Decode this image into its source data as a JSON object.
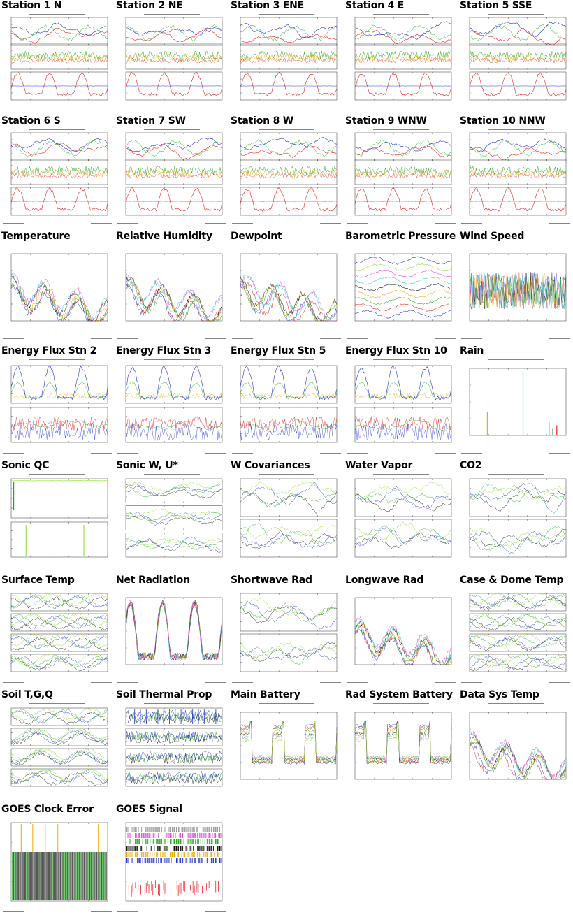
{
  "page": {
    "background": "#ffffff"
  },
  "colors": {
    "blue": "#2233dd",
    "red": "#ee2222",
    "green": "#22aa22",
    "orange": "#eeaa00",
    "black": "#111111",
    "cyan": "#33cccc",
    "magenta": "#dd44dd",
    "lime": "#88dd22",
    "gray": "#999999"
  },
  "tiles": [
    {
      "title": "Station 1 N",
      "kind": "station"
    },
    {
      "title": "Station 2 NE",
      "kind": "station"
    },
    {
      "title": "Station 3 ENE",
      "kind": "station"
    },
    {
      "title": "Station 4 E",
      "kind": "station"
    },
    {
      "title": "Station 5 SSE",
      "kind": "station"
    },
    {
      "title": "Station 6 S",
      "kind": "station"
    },
    {
      "title": "Station 7 SW",
      "kind": "station"
    },
    {
      "title": "Station 8 W",
      "kind": "station"
    },
    {
      "title": "Station 9 WNW",
      "kind": "station"
    },
    {
      "title": "Station 10 NNW",
      "kind": "station"
    },
    {
      "title": "Temperature",
      "kind": "multi"
    },
    {
      "title": "Relative Humidity",
      "kind": "multi"
    },
    {
      "title": "Dewpoint",
      "kind": "multi"
    },
    {
      "title": "Barometric Pressure",
      "kind": "pressure"
    },
    {
      "title": "Wind Speed",
      "kind": "noisy"
    },
    {
      "title": "Energy Flux Stn 2",
      "kind": "flux"
    },
    {
      "title": "Energy Flux Stn 3",
      "kind": "flux"
    },
    {
      "title": "Energy Flux Stn 5",
      "kind": "flux"
    },
    {
      "title": "Energy Flux Stn 10",
      "kind": "flux"
    },
    {
      "title": "Rain",
      "kind": "rain"
    },
    {
      "title": "Sonic QC",
      "kind": "qc"
    },
    {
      "title": "Sonic W, U*",
      "kind": "three"
    },
    {
      "title": "W Covariances",
      "kind": "two"
    },
    {
      "title": "Water Vapor",
      "kind": "two"
    },
    {
      "title": "CO2",
      "kind": "two"
    },
    {
      "title": "Surface Temp",
      "kind": "four"
    },
    {
      "title": "Net Radiation",
      "kind": "diurnal"
    },
    {
      "title": "Shortwave Rad",
      "kind": "two"
    },
    {
      "title": "Longwave Rad",
      "kind": "multi"
    },
    {
      "title": "Case & Dome Temp",
      "kind": "four"
    },
    {
      "title": "Soil T,G,Q",
      "kind": "four"
    },
    {
      "title": "Soil Thermal Prop",
      "kind": "soil"
    },
    {
      "title": "Main Battery",
      "kind": "battery"
    },
    {
      "title": "Rad System Battery",
      "kind": "battery"
    },
    {
      "title": "Data Sys Temp",
      "kind": "multi"
    },
    {
      "title": "GOES Clock Error",
      "kind": "clock"
    },
    {
      "title": "GOES Signal",
      "kind": "signal"
    }
  ]
}
